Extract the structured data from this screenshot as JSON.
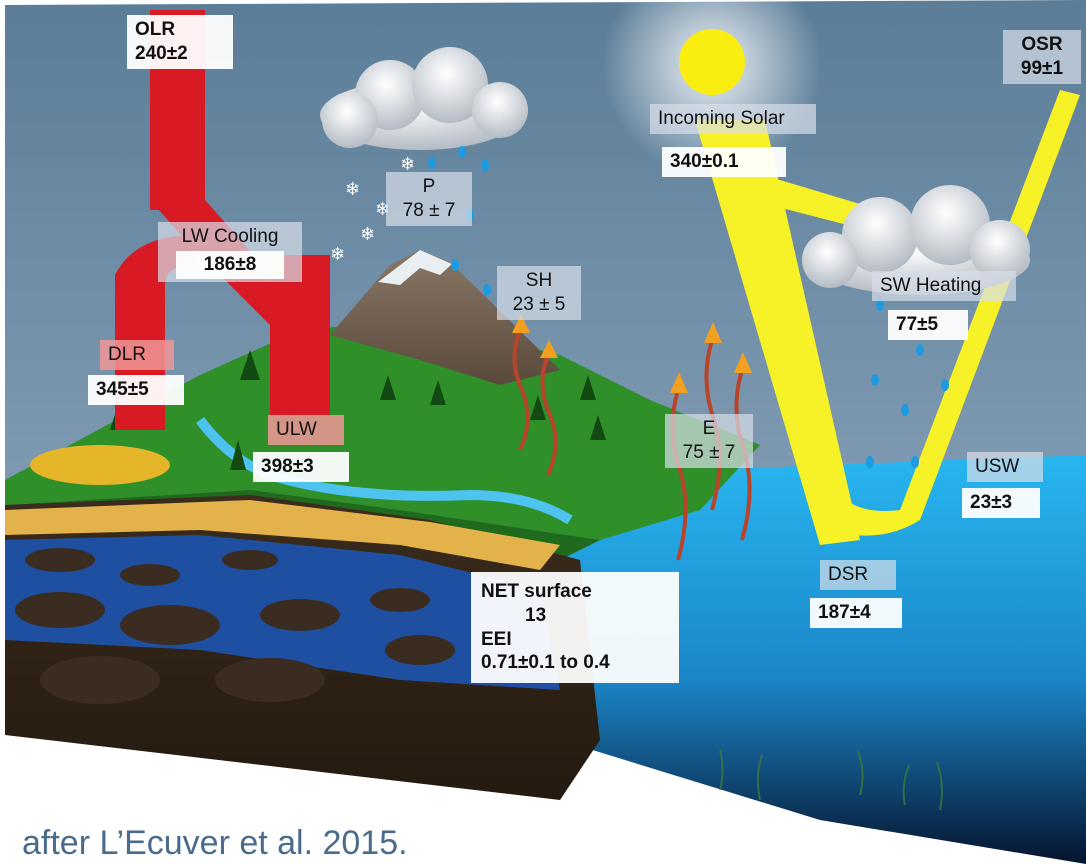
{
  "title": "",
  "labels": {
    "olr": {
      "name": "OLR",
      "value": "240±2"
    },
    "lw_cooling": {
      "name": "LW Cooling",
      "value": "186±8"
    },
    "dlr": {
      "name": "DLR",
      "value": "345±5"
    },
    "ulw": {
      "name": "ULW",
      "value": "398±3"
    },
    "precip": {
      "name": "P",
      "value": "78 ± 7"
    },
    "sh": {
      "name": "SH",
      "value": "23 ± 5"
    },
    "evap": {
      "name": "E",
      "value": "75 ± 7"
    },
    "incoming_solar": {
      "name": "Incoming Solar",
      "value": "340±0.1"
    },
    "osr": {
      "name": "OSR",
      "value": "99±1"
    },
    "sw_heating": {
      "name": "SW Heating",
      "value": "77±5"
    },
    "usw": {
      "name": "USW",
      "value": "23±3"
    },
    "dsr": {
      "name": "DSR",
      "value": "187±4"
    },
    "net": {
      "name": "NET surface",
      "value": "13",
      "eei_name": "EEI",
      "eei_value": "0.71±0.1 to 0.4"
    }
  },
  "caption": "after L’Ecuver et al. 2015.",
  "colors": {
    "longwave": "#d81a24",
    "shortwave": "#f7f227",
    "ocean": "#22b2ee",
    "land": "#2a8a23",
    "sky": "#6f8ca6"
  },
  "icons": [
    "sun-icon",
    "cloud-icon",
    "snowflake-icon",
    "raindrop-icon",
    "heat-arrow-icon",
    "tree-icon"
  ]
}
